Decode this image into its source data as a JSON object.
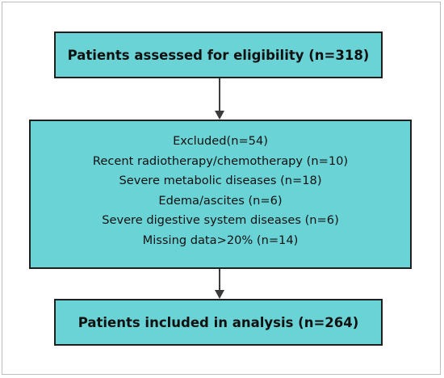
{
  "flowchart": {
    "assessed": "Patients assessed for eligibility (n=318)",
    "excluded": {
      "header": "Excluded(n=54)",
      "reasons": [
        "Recent radiotherapy/chemotherapy (n=10)",
        "Severe metabolic diseases (n=18)",
        "Edema/ascites (n=6)",
        "Severe digestive system diseases (n=6)",
        "Missing data>20% (n=14)"
      ]
    },
    "included": "Patients included in analysis (n=264)"
  },
  "colors": {
    "box_fill": "#6ad3d6",
    "box_border": "#1f1f1f",
    "arrow": "#3b3b3b"
  }
}
